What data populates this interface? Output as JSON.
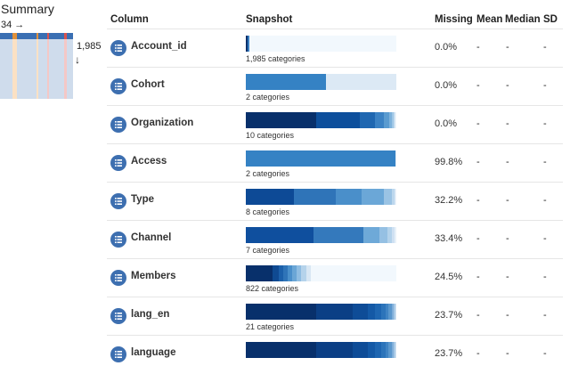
{
  "summary": {
    "title": "Summary",
    "columns_count": "34 →",
    "rows_count": "1,985",
    "rows_arrow": "↓",
    "minimap_colors": [
      "#3a6fb3",
      "#3a6fb3",
      "#3a6fb3",
      "#3a6fb3",
      "#3a6fb3",
      "#3a6fb3",
      "#e0913b",
      "#e0913b",
      "#3a6fb3",
      "#3a6fb3",
      "#3a6fb3",
      "#3a6fb3",
      "#3a6fb3",
      "#3a6fb3",
      "#3a6fb3",
      "#3a6fb3",
      "#3a6fb3",
      "#e0913b",
      "#3a6fb3",
      "#3a6fb3",
      "#3a6fb3",
      "#3a6fb3",
      "#d9534f",
      "#3a6fb3",
      "#3a6fb3",
      "#3a6fb3",
      "#3a6fb3",
      "#3a6fb3",
      "#3a6fb3",
      "#3a6fb3",
      "#d9534f",
      "#3a6fb3",
      "#3a6fb3",
      "#3a6fb3"
    ],
    "minimap_body_colors": [
      "#cfdcec",
      "#cfdcec",
      "#cfdcec",
      "#cfdcec",
      "#cfdcec",
      "#cfdcec",
      "#fbe1c4",
      "#fbe1c4",
      "#cfdcec",
      "#cfdcec",
      "#cfdcec",
      "#cfdcec",
      "#cfdcec",
      "#cfdcec",
      "#cfdcec",
      "#cfdcec",
      "#cfdcec",
      "#fbe1c4",
      "#cfdcec",
      "#cfdcec",
      "#cfdcec",
      "#cfdcec",
      "#f4c8c6",
      "#cfdcec",
      "#cfdcec",
      "#cfdcec",
      "#cfdcec",
      "#cfdcec",
      "#cfdcec",
      "#cfdcec",
      "#f4c8c6",
      "#cfdcec",
      "#cfdcec",
      "#cfdcec"
    ]
  },
  "header": {
    "column": "Column",
    "snapshot": "Snapshot",
    "missing": "Missing",
    "mean": "Mean",
    "median": "Median",
    "sd": "SD"
  },
  "rows": [
    {
      "name": "Account_id",
      "categories": "1,985 categories",
      "missing": "0.0%",
      "mean": "-",
      "median": "-",
      "sd": "-",
      "segments": [
        {
          "f": 0.01,
          "c": "#08306b"
        },
        {
          "f": 0.015,
          "c": "#3a7fc1"
        },
        {
          "f": 0.975,
          "c": "#f2f8fd"
        }
      ]
    },
    {
      "name": "Cohort",
      "categories": "2 categories",
      "missing": "0.0%",
      "mean": "-",
      "median": "-",
      "sd": "-",
      "segments": [
        {
          "f": 0.53,
          "c": "#3582c4"
        },
        {
          "f": 0.47,
          "c": "#dce9f5"
        }
      ]
    },
    {
      "name": "Organization",
      "categories": "10 categories",
      "missing": "0.0%",
      "mean": "-",
      "median": "-",
      "sd": "-",
      "segments": [
        {
          "f": 0.47,
          "c": "#08306b"
        },
        {
          "f": 0.29,
          "c": "#0d4f9c"
        },
        {
          "f": 0.1,
          "c": "#1f67b1"
        },
        {
          "f": 0.06,
          "c": "#3b82c4"
        },
        {
          "f": 0.03,
          "c": "#5a9bd0"
        },
        {
          "f": 0.02,
          "c": "#7db2dc"
        },
        {
          "f": 0.01,
          "c": "#9fc7e6"
        },
        {
          "f": 0.01,
          "c": "#bfd9ee"
        },
        {
          "f": 0.005,
          "c": "#d9e8f5"
        },
        {
          "f": 0.005,
          "c": "#eef5fb"
        }
      ]
    },
    {
      "name": "Access",
      "categories": "2 categories",
      "missing": "99.8%",
      "mean": "-",
      "median": "-",
      "sd": "-",
      "segments": [
        {
          "f": 0.995,
          "c": "#3582c4"
        },
        {
          "f": 0.005,
          "c": "#dce9f5"
        }
      ]
    },
    {
      "name": "Type",
      "categories": "8 categories",
      "missing": "32.2%",
      "mean": "-",
      "median": "-",
      "sd": "-",
      "segments": [
        {
          "f": 0.32,
          "c": "#0d4a96"
        },
        {
          "f": 0.28,
          "c": "#2f74b8"
        },
        {
          "f": 0.17,
          "c": "#4a8fca"
        },
        {
          "f": 0.15,
          "c": "#6ba7d7"
        },
        {
          "f": 0.05,
          "c": "#9ac3e4"
        },
        {
          "f": 0.02,
          "c": "#bcd7ed"
        },
        {
          "f": 0.005,
          "c": "#d6e6f4"
        },
        {
          "f": 0.005,
          "c": "#edf4fb"
        }
      ]
    },
    {
      "name": "Channel",
      "categories": "7 categories",
      "missing": "33.4%",
      "mean": "-",
      "median": "-",
      "sd": "-",
      "segments": [
        {
          "f": 0.45,
          "c": "#0f4f9e"
        },
        {
          "f": 0.33,
          "c": "#3479bc"
        },
        {
          "f": 0.11,
          "c": "#6ea9d8"
        },
        {
          "f": 0.05,
          "c": "#95c0e3"
        },
        {
          "f": 0.03,
          "c": "#b3d2eb"
        },
        {
          "f": 0.02,
          "c": "#cfe1f2"
        },
        {
          "f": 0.01,
          "c": "#e8f1f9"
        }
      ]
    },
    {
      "name": "Members",
      "categories": "822 categories",
      "missing": "24.5%",
      "mean": "-",
      "median": "-",
      "sd": "-",
      "segments": [
        {
          "f": 0.18,
          "c": "#08306b"
        },
        {
          "f": 0.04,
          "c": "#0f4a92"
        },
        {
          "f": 0.03,
          "c": "#1c60aa"
        },
        {
          "f": 0.03,
          "c": "#2f74b8"
        },
        {
          "f": 0.03,
          "c": "#4a8fca"
        },
        {
          "f": 0.03,
          "c": "#6aa6d6"
        },
        {
          "f": 0.03,
          "c": "#8fbde2"
        },
        {
          "f": 0.03,
          "c": "#b5d3eb"
        },
        {
          "f": 0.03,
          "c": "#d8e7f4"
        },
        {
          "f": 0.57,
          "c": "#f2f8fd"
        }
      ]
    },
    {
      "name": "lang_en",
      "categories": "21 categories",
      "missing": "23.7%",
      "mean": "-",
      "median": "-",
      "sd": "-",
      "segments": [
        {
          "f": 0.47,
          "c": "#08306b"
        },
        {
          "f": 0.24,
          "c": "#0b3f85"
        },
        {
          "f": 0.1,
          "c": "#0e4c97"
        },
        {
          "f": 0.05,
          "c": "#1459a6"
        },
        {
          "f": 0.04,
          "c": "#1e66b1"
        },
        {
          "f": 0.03,
          "c": "#2c74ba"
        },
        {
          "f": 0.02,
          "c": "#3f83c3"
        },
        {
          "f": 0.02,
          "c": "#5a97cd"
        },
        {
          "f": 0.015,
          "c": "#7faed9"
        },
        {
          "f": 0.01,
          "c": "#a8c9e6"
        },
        {
          "f": 0.005,
          "c": "#d2e3f2"
        }
      ]
    },
    {
      "name": "language",
      "categories": "",
      "missing": "23.7%",
      "mean": "-",
      "median": "-",
      "sd": "-",
      "segments": [
        {
          "f": 0.47,
          "c": "#08306b"
        },
        {
          "f": 0.24,
          "c": "#0b3f85"
        },
        {
          "f": 0.1,
          "c": "#0e4c97"
        },
        {
          "f": 0.05,
          "c": "#1459a6"
        },
        {
          "f": 0.04,
          "c": "#1e66b1"
        },
        {
          "f": 0.03,
          "c": "#2c74ba"
        },
        {
          "f": 0.02,
          "c": "#3f83c3"
        },
        {
          "f": 0.02,
          "c": "#5a97cd"
        },
        {
          "f": 0.015,
          "c": "#7faed9"
        },
        {
          "f": 0.01,
          "c": "#a8c9e6"
        },
        {
          "f": 0.005,
          "c": "#d2e3f2"
        }
      ]
    }
  ]
}
